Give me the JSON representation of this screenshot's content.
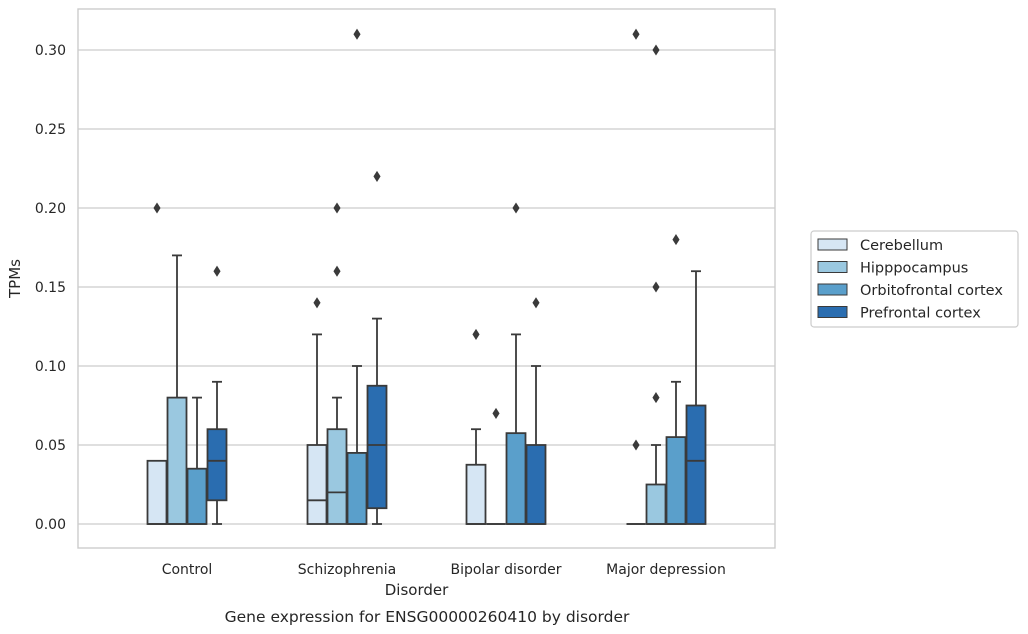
{
  "chart_data": {
    "type": "box",
    "xlabel": "Disorder",
    "ylabel": "TPMs",
    "caption": "Gene expression for ENSG00000260410 by disorder",
    "ylim": [
      -0.015,
      0.325
    ],
    "yticks": [
      "0.00",
      "0.05",
      "0.10",
      "0.15",
      "0.20",
      "0.25",
      "0.30"
    ],
    "grid": "horizontal",
    "legend_position": "right",
    "categories": [
      "Control",
      "Schizophrenia",
      "Bipolar disorder",
      "Major depression"
    ],
    "series": [
      {
        "name": "Cerebellum",
        "color": "#d6e6f4",
        "boxes": [
          {
            "q1": 0,
            "median": 0,
            "q3": 0.04,
            "whisker_low": 0,
            "whisker_high": 0.04,
            "outliers": [
              0.2
            ]
          },
          {
            "q1": 0,
            "median": 0.015,
            "q3": 0.05,
            "whisker_low": 0,
            "whisker_high": 0.12,
            "outliers": [
              0.14
            ]
          },
          {
            "q1": 0,
            "median": 0,
            "q3": 0.0375,
            "whisker_low": 0,
            "whisker_high": 0.06,
            "outliers": [
              0.12
            ]
          },
          {
            "q1": 0,
            "median": 0,
            "q3": 0,
            "whisker_low": 0,
            "whisker_high": 0,
            "outliers": [
              0.05,
              0.31
            ]
          }
        ]
      },
      {
        "name": "Hipppocampus",
        "color": "#9ac8e0",
        "boxes": [
          {
            "q1": 0,
            "median": 0,
            "q3": 0.08,
            "whisker_low": 0,
            "whisker_high": 0.17,
            "outliers": []
          },
          {
            "q1": 0,
            "median": 0.02,
            "q3": 0.06,
            "whisker_low": 0,
            "whisker_high": 0.08,
            "outliers": [
              0.16,
              0.2
            ]
          },
          {
            "q1": 0,
            "median": 0,
            "q3": 0,
            "whisker_low": 0,
            "whisker_high": 0,
            "outliers": [
              0.07
            ]
          },
          {
            "q1": 0,
            "median": 0,
            "q3": 0.025,
            "whisker_low": 0,
            "whisker_high": 0.05,
            "outliers": [
              0.08,
              0.15,
              0.3
            ]
          }
        ]
      },
      {
        "name": "Orbitofrontal cortex",
        "color": "#5a9fcb",
        "boxes": [
          {
            "q1": 0,
            "median": 0,
            "q3": 0.035,
            "whisker_low": 0,
            "whisker_high": 0.08,
            "outliers": []
          },
          {
            "q1": 0,
            "median": 0,
            "q3": 0.045,
            "whisker_low": 0,
            "whisker_high": 0.1,
            "outliers": [
              0.31
            ]
          },
          {
            "q1": 0,
            "median": 0,
            "q3": 0.0575,
            "whisker_low": 0,
            "whisker_high": 0.12,
            "outliers": [
              0.2
            ]
          },
          {
            "q1": 0,
            "median": 0,
            "q3": 0.055,
            "whisker_low": 0,
            "whisker_high": 0.09,
            "outliers": [
              0.18
            ]
          }
        ]
      },
      {
        "name": "Prefrontal cortex",
        "color": "#2a6db0",
        "boxes": [
          {
            "q1": 0.015,
            "median": 0.04,
            "q3": 0.06,
            "whisker_low": 0,
            "whisker_high": 0.09,
            "outliers": [
              0.16
            ]
          },
          {
            "q1": 0.01,
            "median": 0.05,
            "q3": 0.0875,
            "whisker_low": 0,
            "whisker_high": 0.13,
            "outliers": [
              0.22
            ]
          },
          {
            "q1": 0,
            "median": 0,
            "q3": 0.05,
            "whisker_low": 0,
            "whisker_high": 0.1,
            "outliers": [
              0.14
            ]
          },
          {
            "q1": 0,
            "median": 0.04,
            "q3": 0.075,
            "whisker_low": 0,
            "whisker_high": 0.16,
            "outliers": []
          }
        ]
      }
    ]
  }
}
